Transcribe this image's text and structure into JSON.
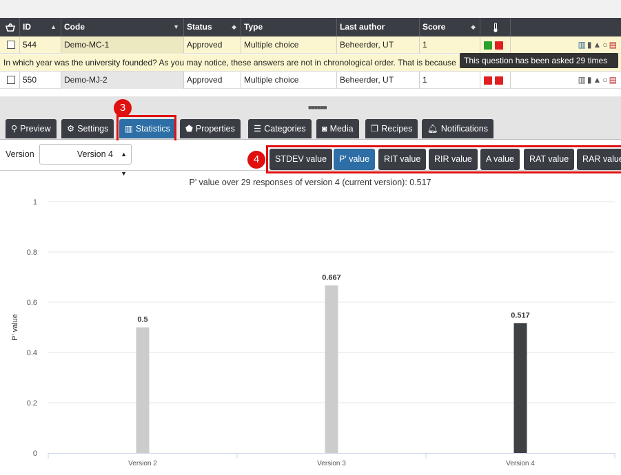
{
  "table": {
    "headers": {
      "basket_icon": "basket-icon",
      "id": "ID",
      "code": "Code",
      "status": "Status",
      "type": "Type",
      "last_author": "Last author",
      "score": "Score",
      "thermometer_icon": "thermometer-icon"
    },
    "rows": [
      {
        "id": "544",
        "code": "Demo-MC-1",
        "status": "Approved",
        "type": "Multiple choice",
        "last_author": "Beheerder, UT",
        "score": "1",
        "indicators": [
          "#2ca02c",
          "#e02020"
        ],
        "description": "In which year was the university founded? As you may notice, these answers are not in chronological order. That is because"
      },
      {
        "id": "550",
        "code": "Demo-MJ-2",
        "status": "Approved",
        "type": "Multiple choice",
        "last_author": "Beheerder, UT",
        "score": "1",
        "indicators": [
          "#e02020",
          "#e02020"
        ]
      }
    ],
    "tooltip": "This question has been asked 29 times"
  },
  "tabs": [
    {
      "icon": "search-icon",
      "label": "Preview"
    },
    {
      "icon": "gear-icon",
      "label": "Settings"
    },
    {
      "icon": "bar-chart-icon",
      "label": "Statistics",
      "active": true
    },
    {
      "icon": "tags-icon",
      "label": "Properties"
    },
    {
      "icon": "list-icon",
      "label": "Categories"
    },
    {
      "icon": "camera-icon",
      "label": "Media"
    },
    {
      "icon": "copy-icon",
      "label": "Recipes"
    },
    {
      "icon": "bell-icon",
      "label": "Notifications"
    }
  ],
  "markers": {
    "tabs": "3",
    "stat_buttons": "4"
  },
  "version": {
    "label": "Version",
    "selected": "Version 4"
  },
  "stat_buttons": [
    {
      "label": "STDEV value"
    },
    {
      "label": "P' value",
      "active": true
    },
    {
      "label": "RIT value"
    },
    {
      "label": "RIR value"
    },
    {
      "label": "A value"
    },
    {
      "label": "RAT value"
    },
    {
      "label": "RAR value"
    }
  ],
  "colors": {
    "accent": "#2c6ea5",
    "dark": "#3a3d44",
    "highlight_row": "#fbf6cf",
    "marker_red": "#e01010"
  },
  "chart_data": {
    "type": "bar",
    "title": "P’ value over 29 responses of version 4 (current version): 0.517",
    "ylabel": "P’ value",
    "xlabel": "",
    "categories": [
      "Version 2",
      "Version 3",
      "Version 4"
    ],
    "values": [
      0.5,
      0.667,
      0.517
    ],
    "data_labels": [
      "0.5",
      "0.667",
      "0.517"
    ],
    "bar_colors": [
      "#cccccc",
      "#cccccc",
      "#3f4245"
    ],
    "yticks": [
      "0",
      "0.2",
      "0.4",
      "0.6",
      "0.8",
      "1"
    ],
    "ylim": [
      0,
      1
    ],
    "grid": true,
    "legend": false
  }
}
